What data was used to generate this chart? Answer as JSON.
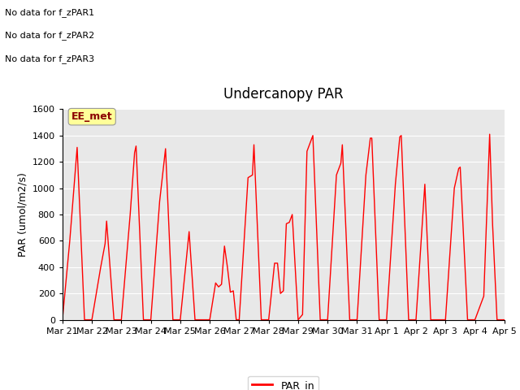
{
  "title": "Undercanopy PAR",
  "ylabel": "PAR (umol/m2/s)",
  "ylim": [
    0,
    1600
  ],
  "yticks": [
    0,
    200,
    400,
    600,
    800,
    1000,
    1200,
    1400,
    1600
  ],
  "line_color": "#FF0000",
  "bg_color": "#E8E8E8",
  "legend_label": "PAR_in",
  "text_annotations": [
    "No data for f_zPAR1",
    "No data for f_zPAR2",
    "No data for f_zPAR3"
  ],
  "ee_met_label": "EE_met",
  "xtick_labels": [
    "Mar 21",
    "Mar 22",
    "Mar 23",
    "Mar 24",
    "Mar 25",
    "Mar 26",
    "Mar 27",
    "Mar 28",
    "Mar 29",
    "Mar 30",
    "Mar 31",
    "Apr 1",
    "Apr 2",
    "Apr 3",
    "Apr 4",
    "Apr 5"
  ],
  "data_x": [
    0,
    0.25,
    0.5,
    0.75,
    1.0,
    1.0,
    1.3,
    1.45,
    1.5,
    1.75,
    2.0,
    2.0,
    2.3,
    2.45,
    2.5,
    2.75,
    3.0,
    3.0,
    3.3,
    3.45,
    3.5,
    3.75,
    4.0,
    4.0,
    4.3,
    4.5,
    4.75,
    5.0,
    5.0,
    5.2,
    5.3,
    5.4,
    5.5,
    5.6,
    5.7,
    5.8,
    5.9,
    6.0,
    6.0,
    6.3,
    6.45,
    6.5,
    6.75,
    7.0,
    7.0,
    7.2,
    7.3,
    7.4,
    7.5,
    7.6,
    7.7,
    7.8,
    8.0,
    8.0,
    8.15,
    8.3,
    8.5,
    8.75,
    9.0,
    9.0,
    9.3,
    9.45,
    9.5,
    9.75,
    10.0,
    10.0,
    10.3,
    10.45,
    10.5,
    10.75,
    11.0,
    11.0,
    11.3,
    11.45,
    11.5,
    11.75,
    12.0,
    12.0,
    12.3,
    12.5,
    12.75,
    13.0,
    13.0,
    13.3,
    13.45,
    13.5,
    13.75,
    14.0,
    14.0,
    14.3,
    14.5,
    14.6,
    14.75,
    15.0
  ],
  "data_y": [
    0,
    600,
    1310,
    0,
    0,
    0,
    400,
    580,
    750,
    0,
    0,
    0,
    800,
    1270,
    1320,
    0,
    0,
    0,
    900,
    1200,
    1300,
    0,
    0,
    0,
    670,
    0,
    0,
    0,
    0,
    280,
    250,
    270,
    560,
    400,
    210,
    220,
    0,
    0,
    0,
    1080,
    1100,
    1330,
    0,
    0,
    0,
    430,
    430,
    200,
    220,
    730,
    740,
    800,
    0,
    0,
    40,
    1280,
    1400,
    0,
    0,
    0,
    1100,
    1190,
    1330,
    0,
    0,
    0,
    1100,
    1380,
    1380,
    0,
    0,
    0,
    1030,
    1390,
    1400,
    0,
    0,
    0,
    1030,
    0,
    0,
    0,
    0,
    1000,
    1150,
    1160,
    0,
    0,
    0,
    180,
    1410,
    720,
    0,
    0
  ]
}
